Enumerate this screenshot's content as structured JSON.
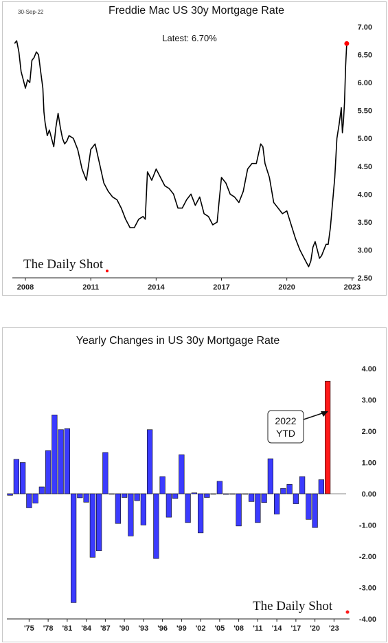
{
  "chart_data": [
    {
      "type": "line",
      "title": "Freddie Mac US 30y Mortgage Rate",
      "date_stamp": "30-Sep-22",
      "annotation": "Latest:  6.70%",
      "watermark": "The Daily Shot",
      "x_tick_labels": [
        "2008",
        "2011",
        "2014",
        "2017",
        "2020",
        "2023"
      ],
      "x_ticks": [
        2008,
        2011,
        2014,
        2017,
        2020,
        2023
      ],
      "xlim": [
        2007.4,
        2023.1
      ],
      "y_tick_labels": [
        "7.00",
        "6.50",
        "6.00",
        "5.50",
        "5.00",
        "4.50",
        "4.00",
        "3.50",
        "3.00",
        "2.50"
      ],
      "y_ticks": [
        7.0,
        6.5,
        6.0,
        5.5,
        5.0,
        4.5,
        4.0,
        3.5,
        3.0,
        2.5
      ],
      "ylim": [
        2.5,
        7.0
      ],
      "latest_value": 6.7,
      "marker_color": "#ff0000",
      "line_color": "#000000",
      "x": [
        2007.5,
        2007.6,
        2007.7,
        2007.8,
        2007.9,
        2008.0,
        2008.1,
        2008.2,
        2008.3,
        2008.4,
        2008.5,
        2008.6,
        2008.7,
        2008.8,
        2008.85,
        2008.9,
        2009.0,
        2009.1,
        2009.2,
        2009.3,
        2009.4,
        2009.5,
        2009.6,
        2009.7,
        2009.8,
        2009.9,
        2010.0,
        2010.2,
        2010.4,
        2010.6,
        2010.8,
        2011.0,
        2011.2,
        2011.4,
        2011.6,
        2011.8,
        2012.0,
        2012.2,
        2012.4,
        2012.6,
        2012.8,
        2013.0,
        2013.2,
        2013.4,
        2013.5,
        2013.6,
        2013.8,
        2014.0,
        2014.2,
        2014.4,
        2014.6,
        2014.8,
        2015.0,
        2015.2,
        2015.4,
        2015.6,
        2015.8,
        2016.0,
        2016.2,
        2016.4,
        2016.6,
        2016.8,
        2016.9,
        2017.0,
        2017.2,
        2017.4,
        2017.6,
        2017.8,
        2018.0,
        2018.2,
        2018.4,
        2018.6,
        2018.8,
        2018.9,
        2019.0,
        2019.2,
        2019.4,
        2019.6,
        2019.8,
        2020.0,
        2020.2,
        2020.4,
        2020.6,
        2020.8,
        2021.0,
        2021.1,
        2021.2,
        2021.3,
        2021.4,
        2021.5,
        2021.6,
        2021.7,
        2021.8,
        2021.9,
        2022.0,
        2022.1,
        2022.2,
        2022.3,
        2022.4,
        2022.5,
        2022.55,
        2022.6,
        2022.65,
        2022.7,
        2022.75
      ],
      "values": [
        6.7,
        6.75,
        6.55,
        6.2,
        6.05,
        5.9,
        6.05,
        6.0,
        6.4,
        6.45,
        6.55,
        6.5,
        6.2,
        5.9,
        5.47,
        5.29,
        5.05,
        5.15,
        5.0,
        4.85,
        5.2,
        5.45,
        5.2,
        5.0,
        4.9,
        4.95,
        5.05,
        5.0,
        4.8,
        4.45,
        4.25,
        4.8,
        4.9,
        4.55,
        4.2,
        4.05,
        3.95,
        3.9,
        3.75,
        3.55,
        3.4,
        3.4,
        3.55,
        3.6,
        3.55,
        4.4,
        4.25,
        4.45,
        4.3,
        4.15,
        4.1,
        4.0,
        3.75,
        3.75,
        3.9,
        4.0,
        3.8,
        3.95,
        3.65,
        3.6,
        3.45,
        3.5,
        3.9,
        4.3,
        4.2,
        4.0,
        3.95,
        3.85,
        4.05,
        4.45,
        4.55,
        4.55,
        4.9,
        4.85,
        4.55,
        4.3,
        3.85,
        3.75,
        3.65,
        3.7,
        3.45,
        3.2,
        3.0,
        2.85,
        2.7,
        2.8,
        3.05,
        3.15,
        3.0,
        2.85,
        2.9,
        3.0,
        3.1,
        3.1,
        3.4,
        3.85,
        4.3,
        5.0,
        5.25,
        5.55,
        5.1,
        5.3,
        5.65,
        6.3,
        6.7
      ],
      "series": [
        {
          "name": "",
          "color": "#000000"
        }
      ]
    },
    {
      "type": "bar",
      "title": "Yearly Changes in US 30y Mortgage Rate",
      "watermark": "The Daily Shot",
      "callout": {
        "line1": "2022",
        "line2": "YTD"
      },
      "x_tick_labels": [
        "'75",
        "'78",
        "'81",
        "'84",
        "'87",
        "'90",
        "'93",
        "'96",
        "'99",
        "'02",
        "'05",
        "'08",
        "'11",
        "'14",
        "'17",
        "'20",
        "'23"
      ],
      "x_tick_years": [
        1975,
        1978,
        1981,
        1984,
        1987,
        1990,
        1993,
        1996,
        1999,
        2002,
        2005,
        2008,
        2011,
        2014,
        2017,
        2020,
        2023
      ],
      "y_tick_labels": [
        "4.00",
        "3.00",
        "2.00",
        "1.00",
        "0.00",
        "-1.00",
        "-2.00",
        "-3.00",
        "-4.00"
      ],
      "y_ticks": [
        4,
        3,
        2,
        1,
        0,
        -1,
        -2,
        -3,
        -4
      ],
      "ylim": [
        -4.0,
        4.0
      ],
      "categories": [
        1972,
        1973,
        1974,
        1975,
        1976,
        1977,
        1978,
        1979,
        1980,
        1981,
        1982,
        1983,
        1984,
        1985,
        1986,
        1987,
        1988,
        1989,
        1990,
        1991,
        1992,
        1993,
        1994,
        1995,
        1996,
        1997,
        1998,
        1999,
        2000,
        2001,
        2002,
        2003,
        2004,
        2005,
        2006,
        2007,
        2008,
        2009,
        2010,
        2011,
        2012,
        2013,
        2014,
        2015,
        2016,
        2017,
        2018,
        2019,
        2020,
        2021,
        2022
      ],
      "values": [
        -0.05,
        1.1,
        1.0,
        -0.45,
        -0.3,
        0.22,
        1.38,
        2.52,
        2.05,
        2.08,
        -3.48,
        -0.13,
        -0.27,
        -2.03,
        -1.82,
        1.32,
        0.0,
        -0.95,
        -0.12,
        -1.35,
        -0.22,
        -1.0,
        2.05,
        -2.07,
        0.55,
        -0.75,
        -0.15,
        1.25,
        -0.92,
        0.03,
        -1.25,
        -0.12,
        0.0,
        0.4,
        -0.02,
        0.0,
        -1.03,
        0.0,
        -0.25,
        -0.92,
        -0.28,
        1.12,
        -0.65,
        0.17,
        0.3,
        -0.32,
        0.55,
        -0.82,
        -1.08,
        0.45,
        3.6
      ],
      "bar_color": "#3b3bff",
      "highlight_color": "#ff1a1a",
      "highlight_category": 2022
    }
  ]
}
